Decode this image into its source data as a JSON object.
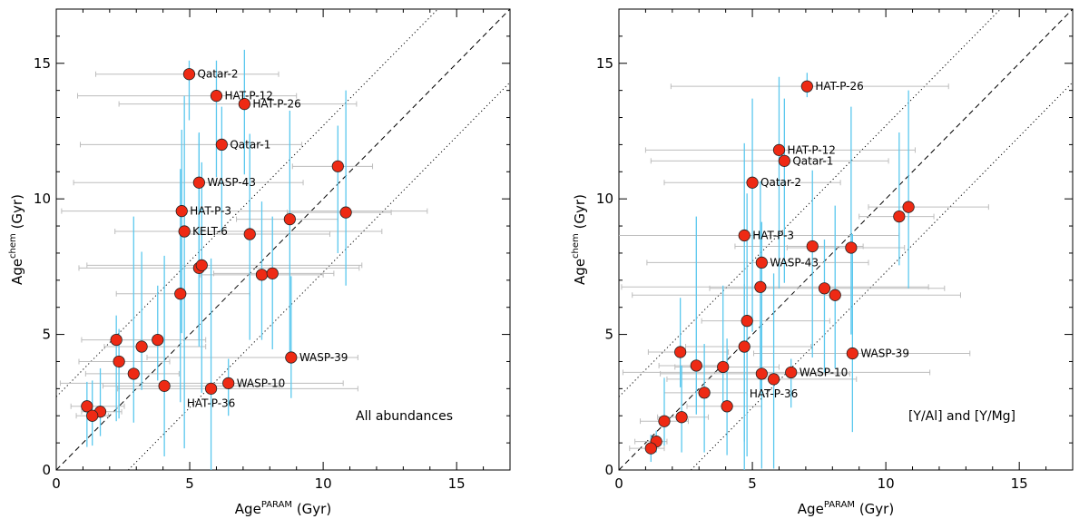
{
  "chart_data": [
    {
      "type": "scatter",
      "panel_annotation": "All abundances",
      "xlabel_base": "Age",
      "xlabel_sup": "PARAM",
      "xlabel_unit": " (Gyr)",
      "ylabel_base": "Age",
      "ylabel_sup": "chem",
      "ylabel_unit": " (Gyr)",
      "xlim": [
        0,
        17
      ],
      "ylim": [
        0,
        17
      ],
      "x_ticks": [
        0,
        5,
        10,
        15
      ],
      "y_ticks": [
        0,
        5,
        10,
        15
      ],
      "one_to_one": true,
      "offset_lines": 2.7,
      "colors": {
        "point": "#ee2a14",
        "y_error": "#5bc8ee",
        "x_error": "#bdbdbd"
      },
      "points": [
        {
          "x": 4.98,
          "y": 14.6,
          "xe": [
            3.5,
            3.35
          ],
          "ye": [
            1.7,
            0.5
          ],
          "label": "Qatar-2",
          "lpos": "right"
        },
        {
          "x": 6.0,
          "y": 13.8,
          "xe": [
            5.2,
            3.0
          ],
          "ye": [
            3.0,
            1.3
          ],
          "label": "HAT-P-12",
          "lpos": "right"
        },
        {
          "x": 7.05,
          "y": 13.5,
          "xe": [
            4.7,
            4.2
          ],
          "ye": [
            2.6,
            2.0
          ],
          "label": "HAT-P-26",
          "lpos": "right"
        },
        {
          "x": 6.2,
          "y": 12.0,
          "xe": [
            5.3,
            3.0
          ],
          "ye": [
            3.2,
            1.4
          ],
          "label": "Qatar-1",
          "lpos": "right"
        },
        {
          "x": 10.55,
          "y": 11.2,
          "xe": [
            1.7,
            1.3
          ],
          "ye": [
            3.2,
            1.5
          ],
          "label": "",
          "lpos": "right"
        },
        {
          "x": 5.35,
          "y": 10.6,
          "xe": [
            4.7,
            3.9
          ],
          "ye": [
            5.8,
            1.8
          ],
          "label": "WASP-43",
          "lpos": "right"
        },
        {
          "x": 10.85,
          "y": 9.5,
          "xe": [
            2.2,
            1.7
          ],
          "ye": [
            2.7,
            4.5
          ],
          "label": "",
          "lpos": "right"
        },
        {
          "x": 4.7,
          "y": 9.55,
          "xe": [
            4.5,
            9.2
          ],
          "ye": [
            4.5,
            3.0
          ],
          "label": "HAT-P-3",
          "lpos": "right"
        },
        {
          "x": 8.75,
          "y": 9.25,
          "xe": [
            2.0,
            1.8
          ],
          "ye": [
            4.9,
            4.0
          ],
          "label": "",
          "lpos": "right"
        },
        {
          "x": 4.8,
          "y": 8.8,
          "xe": [
            2.6,
            7.4
          ],
          "ye": [
            8.0,
            5.0
          ],
          "label": "KELT-6",
          "lpos": "right"
        },
        {
          "x": 7.25,
          "y": 8.7,
          "xe": [
            2.5,
            3.0
          ],
          "ye": [
            3.9,
            3.7
          ],
          "label": "",
          "lpos": "right"
        },
        {
          "x": 7.7,
          "y": 7.2,
          "xe": [
            2.3,
            2.3
          ],
          "ye": [
            2.4,
            2.7
          ],
          "label": "",
          "lpos": "right"
        },
        {
          "x": 8.1,
          "y": 7.25,
          "xe": [
            2.2,
            2.3
          ],
          "ye": [
            2.8,
            2.1
          ],
          "label": "",
          "lpos": "right"
        },
        {
          "x": 5.35,
          "y": 7.45,
          "xe": [
            4.5,
            6.0
          ],
          "ye": [
            2.9,
            5.0
          ],
          "label": "",
          "lpos": "right"
        },
        {
          "x": 5.45,
          "y": 7.55,
          "xe": [
            4.3,
            6.0
          ],
          "ye": [
            4.7,
            3.8
          ],
          "label": "",
          "lpos": "right"
        },
        {
          "x": 4.65,
          "y": 6.5,
          "xe": [
            2.4,
            2.6
          ],
          "ye": [
            4.0,
            4.6
          ],
          "label": "",
          "lpos": "right"
        },
        {
          "x": 2.25,
          "y": 4.8,
          "xe": [
            1.3,
            1.8
          ],
          "ye": [
            3.0,
            0.9
          ],
          "label": "",
          "lpos": "right"
        },
        {
          "x": 3.8,
          "y": 4.8,
          "xe": [
            1.5,
            1.8
          ],
          "ye": [
            1.5,
            2.0
          ],
          "label": "",
          "lpos": "right"
        },
        {
          "x": 3.2,
          "y": 4.55,
          "xe": [
            1.4,
            2.4
          ],
          "ye": [
            1.6,
            3.5
          ],
          "label": "",
          "lpos": "right"
        },
        {
          "x": 2.35,
          "y": 4.0,
          "xe": [
            1.5,
            1.9
          ],
          "ye": [
            2.1,
            1.2
          ],
          "label": "",
          "lpos": "right"
        },
        {
          "x": 8.8,
          "y": 4.15,
          "xe": [
            5.4,
            2.5
          ],
          "ye": [
            1.5,
            3.0
          ],
          "label": "WASP-39",
          "lpos": "right"
        },
        {
          "x": 2.9,
          "y": 3.55,
          "xe": [
            1.8,
            1.7
          ],
          "ye": [
            1.8,
            5.8
          ],
          "label": "",
          "lpos": "right"
        },
        {
          "x": 6.45,
          "y": 3.2,
          "xe": [
            6.3,
            4.3
          ],
          "ye": [
            1.2,
            0.9
          ],
          "label": "WASP-10",
          "lpos": "right"
        },
        {
          "x": 4.05,
          "y": 3.1,
          "xe": [
            2.3,
            4.3
          ],
          "ye": [
            2.6,
            4.8
          ],
          "label": "",
          "lpos": "right"
        },
        {
          "x": 5.8,
          "y": 3.0,
          "xe": [
            3.5,
            5.5
          ],
          "ye": [
            3.0,
            4.8
          ],
          "label": "HAT-P-36",
          "lpos": "below"
        },
        {
          "x": 1.15,
          "y": 2.35,
          "xe": [
            0.6,
            1.4
          ],
          "ye": [
            1.5,
            0.9
          ],
          "label": "",
          "lpos": "right"
        },
        {
          "x": 1.65,
          "y": 2.15,
          "xe": [
            0.7,
            0.8
          ],
          "ye": [
            0.9,
            1.6
          ],
          "label": "",
          "lpos": "right"
        },
        {
          "x": 1.35,
          "y": 2.0,
          "xe": [
            0.6,
            0.6
          ],
          "ye": [
            1.1,
            1.3
          ],
          "label": "",
          "lpos": "right"
        }
      ]
    },
    {
      "type": "scatter",
      "panel_annotation": "[Y/Al] and [Y/Mg]",
      "xlabel_base": "Age",
      "xlabel_sup": "PARAM",
      "xlabel_unit": " (Gyr)",
      "ylabel_base": "Age",
      "ylabel_sup": "chem",
      "ylabel_unit": " (Gyr)",
      "xlim": [
        0,
        17
      ],
      "ylim": [
        0,
        17
      ],
      "x_ticks": [
        0,
        5,
        10,
        15
      ],
      "y_ticks": [
        0,
        5,
        10,
        15
      ],
      "one_to_one": true,
      "offset_lines": 2.7,
      "colors": {
        "point": "#ee2a14",
        "y_error": "#5bc8ee",
        "x_error": "#bdbdbd"
      },
      "points": [
        {
          "x": 7.05,
          "y": 14.15,
          "xe": [
            5.1,
            5.3
          ],
          "ye": [
            0.4,
            0.5
          ],
          "label": "HAT-P-26",
          "lpos": "right"
        },
        {
          "x": 6.0,
          "y": 11.8,
          "xe": [
            5.0,
            5.1
          ],
          "ye": [
            5.1,
            2.7
          ],
          "label": "HAT-P-12",
          "lpos": "right"
        },
        {
          "x": 6.2,
          "y": 11.4,
          "xe": [
            5.0,
            3.9
          ],
          "ye": [
            4.5,
            2.3
          ],
          "label": "Qatar-1",
          "lpos": "right"
        },
        {
          "x": 5.0,
          "y": 10.6,
          "xe": [
            3.3,
            3.3
          ],
          "ye": [
            5.5,
            3.1
          ],
          "label": "Qatar-2",
          "lpos": "right"
        },
        {
          "x": 10.85,
          "y": 9.7,
          "xe": [
            1.5,
            3.0
          ],
          "ye": [
            3.0,
            4.3
          ],
          "label": "",
          "lpos": "right"
        },
        {
          "x": 10.5,
          "y": 9.35,
          "xe": [
            1.5,
            1.3
          ],
          "ye": [
            1.8,
            3.1
          ],
          "label": "",
          "lpos": "right"
        },
        {
          "x": 4.7,
          "y": 8.65,
          "xe": [
            5.9,
            5.8
          ],
          "ye": [
            8.7,
            3.4
          ],
          "label": "HAT-P-3",
          "lpos": "right"
        },
        {
          "x": 7.25,
          "y": 8.25,
          "xe": [
            2.9,
            1.9
          ],
          "ye": [
            4.1,
            2.8
          ],
          "label": "",
          "lpos": "right"
        },
        {
          "x": 8.7,
          "y": 8.2,
          "xe": [
            2.4,
            2.0
          ],
          "ye": [
            3.2,
            5.2
          ],
          "label": "",
          "lpos": "right"
        },
        {
          "x": 5.35,
          "y": 7.65,
          "xe": [
            4.3,
            4.0
          ],
          "ye": [
            5.0,
            1.5
          ],
          "label": "WASP-43",
          "lpos": "right"
        },
        {
          "x": 7.7,
          "y": 6.7,
          "xe": [
            4.3,
            4.5
          ],
          "ye": [
            3.1,
            1.8
          ],
          "label": "",
          "lpos": "right"
        },
        {
          "x": 8.1,
          "y": 6.45,
          "xe": [
            7.6,
            4.7
          ],
          "ye": [
            2.7,
            3.3
          ],
          "label": "",
          "lpos": "right"
        },
        {
          "x": 5.3,
          "y": 6.75,
          "xe": [
            5.2,
            6.3
          ],
          "ye": [
            3.8,
            3.9
          ],
          "label": "",
          "lpos": "right"
        },
        {
          "x": 4.8,
          "y": 5.5,
          "xe": [
            1.7,
            3.1
          ],
          "ye": [
            5.0,
            4.7
          ],
          "label": "",
          "lpos": "right"
        },
        {
          "x": 4.7,
          "y": 4.55,
          "xe": [
            2.2,
            2.5
          ],
          "ye": [
            3.5,
            2.3
          ],
          "label": "",
          "lpos": "right"
        },
        {
          "x": 2.3,
          "y": 4.35,
          "xe": [
            1.2,
            1.8
          ],
          "ye": [
            1.3,
            2.0
          ],
          "label": "",
          "lpos": "right"
        },
        {
          "x": 8.75,
          "y": 4.3,
          "xe": [
            3.7,
            4.4
          ],
          "ye": [
            2.9,
            4.4
          ],
          "label": "WASP-39",
          "lpos": "right"
        },
        {
          "x": 2.9,
          "y": 3.85,
          "xe": [
            1.4,
            1.0
          ],
          "ye": [
            1.8,
            5.5
          ],
          "label": "",
          "lpos": "right"
        },
        {
          "x": 3.9,
          "y": 3.8,
          "xe": [
            1.8,
            2.1
          ],
          "ye": [
            1.3,
            3.0
          ],
          "label": "",
          "lpos": "right"
        },
        {
          "x": 5.35,
          "y": 3.55,
          "xe": [
            3.8,
            3.3
          ],
          "ye": [
            3.5,
            1.9
          ],
          "label": "",
          "lpos": "right"
        },
        {
          "x": 6.45,
          "y": 3.6,
          "xe": [
            6.3,
            5.2
          ],
          "ye": [
            1.3,
            0.5
          ],
          "label": "WASP-10",
          "lpos": "right"
        },
        {
          "x": 5.8,
          "y": 3.35,
          "xe": [
            4.0,
            3.1
          ],
          "ye": [
            3.3,
            3.9
          ],
          "label": "HAT-P-36",
          "lpos": "below"
        },
        {
          "x": 3.2,
          "y": 2.85,
          "xe": [
            1.5,
            1.6
          ],
          "ye": [
            2.2,
            1.8
          ],
          "label": "",
          "lpos": "right"
        },
        {
          "x": 4.05,
          "y": 2.35,
          "xe": [
            1.5,
            1.3
          ],
          "ye": [
            1.8,
            2.5
          ],
          "label": "",
          "lpos": "right"
        },
        {
          "x": 2.35,
          "y": 1.95,
          "xe": [
            0.9,
            1.0
          ],
          "ye": [
            1.3,
            1.9
          ],
          "label": "",
          "lpos": "right"
        },
        {
          "x": 1.7,
          "y": 1.8,
          "xe": [
            0.9,
            0.9
          ],
          "ye": [
            0.9,
            1.6
          ],
          "label": "",
          "lpos": "right"
        },
        {
          "x": 1.4,
          "y": 1.05,
          "xe": [
            0.8,
            0.4
          ],
          "ye": [
            0.4,
            0.4
          ],
          "label": "",
          "lpos": "right"
        },
        {
          "x": 1.2,
          "y": 0.8,
          "xe": [
            0.8,
            0.5
          ],
          "ye": [
            0.5,
            0.5
          ],
          "label": "",
          "lpos": "right"
        }
      ]
    }
  ]
}
